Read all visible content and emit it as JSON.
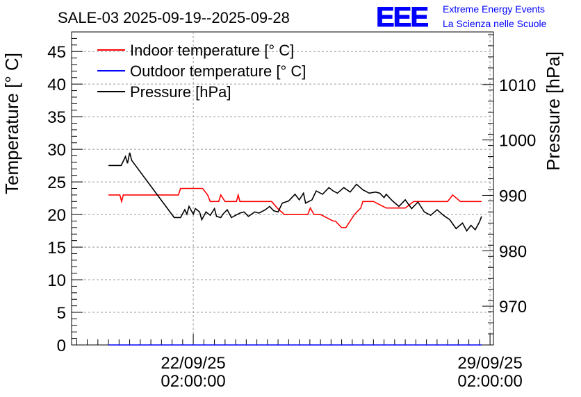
{
  "header": {
    "title": "SALE-03 2025-09-19--2025-09-28",
    "logo_text": "EEE",
    "logo_line1": "Extreme Energy Events",
    "logo_line2": "La Scienza nelle Scuole"
  },
  "colors": {
    "indoor": "#ff0000",
    "outdoor": "#0000ff",
    "pressure": "#000000",
    "logo": "#0000ff",
    "grid": "#999999"
  },
  "chart_data": {
    "type": "line",
    "title": "SALE-03 2025-09-19--2025-09-28",
    "ylabel": "Temperature [° C]",
    "y2label": "Pressure [hPa]",
    "ylim": [
      0,
      48
    ],
    "y2lim": [
      963.0,
      1019.5
    ],
    "xlim": [
      -1.87,
      8.08
    ],
    "x_unit": "days after 2025-09-21 02:00:00",
    "yticks": [
      {
        "value": 0,
        "label": "0"
      },
      {
        "value": 5,
        "label": "5"
      },
      {
        "value": 10,
        "label": "10"
      },
      {
        "value": 15,
        "label": "15"
      },
      {
        "value": 20,
        "label": "20"
      },
      {
        "value": 25,
        "label": "25"
      },
      {
        "value": 30,
        "label": "30"
      },
      {
        "value": 35,
        "label": "35"
      },
      {
        "value": 40,
        "label": "40"
      },
      {
        "value": 45,
        "label": "45"
      }
    ],
    "y2ticks": [
      {
        "value": 970,
        "label": "970"
      },
      {
        "value": 980,
        "label": "980"
      },
      {
        "value": 990,
        "label": "990"
      },
      {
        "value": 1000,
        "label": "1000"
      },
      {
        "value": 1010,
        "label": "1010"
      }
    ],
    "xticks": [
      {
        "value": 1,
        "label1": "22/09/25",
        "label2": "02:00:00"
      },
      {
        "value": 8,
        "label1": "29/09/25",
        "label2": "02:00:00"
      }
    ],
    "legend": {
      "position": "top-left",
      "entries": [
        {
          "key": "indoor",
          "label": "Indoor temperature [° C]"
        },
        {
          "key": "outdoor",
          "label": "Outdoor temperature [° C]"
        },
        {
          "key": "pressure",
          "label": "Pressure [hPa]"
        }
      ]
    },
    "series": [
      {
        "key": "indoor",
        "name": "Indoor temperature [° C]",
        "axis": "left",
        "x": [
          -1.0,
          -0.73,
          -0.69,
          -0.65,
          0.65,
          0.7,
          1.22,
          1.34,
          1.4,
          1.6,
          1.65,
          1.75,
          1.8,
          2.02,
          2.06,
          2.1,
          2.17,
          2.85,
          2.98,
          3.15,
          3.7,
          3.76,
          3.85,
          4.0,
          4.3,
          4.35,
          4.5,
          4.6,
          4.7,
          4.8,
          4.95,
          5.0,
          5.1,
          5.25,
          5.55,
          6.0,
          6.2,
          6.3,
          6.5,
          6.6,
          7.0,
          7.12,
          7.3,
          7.8
        ],
        "y": [
          23,
          23,
          22,
          23,
          23,
          24,
          24,
          23,
          22,
          22,
          23,
          22,
          22,
          22,
          23,
          22,
          22,
          22,
          21,
          20,
          20,
          21,
          20,
          20,
          19,
          19,
          18,
          18,
          19,
          20,
          21,
          22,
          22,
          22,
          21,
          21,
          22,
          22,
          22,
          22,
          22,
          23,
          22,
          22
        ]
      },
      {
        "key": "outdoor",
        "name": "Outdoor temperature [° C]",
        "axis": "left",
        "x": [
          -1.0,
          7.8
        ],
        "y": [
          0,
          0
        ]
      },
      {
        "key": "pressure",
        "name": "Pressure [hPa]",
        "axis": "right",
        "x": [
          -1.0,
          -0.7,
          -0.6,
          -0.55,
          -0.5,
          -0.45,
          0.55,
          0.7,
          0.8,
          0.85,
          0.9,
          1.0,
          1.05,
          1.15,
          1.2,
          1.3,
          1.4,
          1.5,
          1.55,
          1.65,
          1.7,
          1.8,
          1.9,
          2.0,
          2.1,
          2.2,
          2.3,
          2.45,
          2.55,
          2.7,
          2.8,
          2.9,
          3.0,
          3.1,
          3.25,
          3.4,
          3.5,
          3.6,
          3.65,
          3.8,
          3.9,
          4.05,
          4.2,
          4.3,
          4.4,
          4.55,
          4.7,
          4.85,
          5.0,
          5.15,
          5.3,
          5.4,
          5.5,
          5.55,
          5.7,
          5.85,
          6.0,
          6.15,
          6.3,
          6.45,
          6.6,
          6.75,
          6.9,
          7.05,
          7.2,
          7.35,
          7.45,
          7.55,
          7.65,
          7.75,
          7.8
        ],
        "y": [
          995.4,
          995.4,
          997.0,
          995.8,
          997.7,
          996.3,
          986.0,
          986.0,
          987.4,
          986.6,
          988.0,
          986.6,
          987.6,
          987.0,
          985.6,
          987.0,
          986.4,
          987.6,
          986.2,
          986.0,
          986.6,
          987.4,
          986.0,
          986.4,
          986.8,
          987.0,
          986.2,
          987.0,
          986.8,
          987.4,
          988.0,
          987.2,
          987.0,
          988.6,
          989.0,
          990.2,
          989.2,
          990.4,
          988.6,
          989.2,
          990.8,
          990.2,
          991.4,
          990.8,
          990.4,
          991.4,
          990.6,
          992.0,
          991.0,
          990.4,
          990.6,
          990.4,
          989.6,
          990.2,
          989.0,
          988.0,
          989.2,
          987.6,
          988.8,
          987.0,
          986.4,
          987.4,
          986.4,
          985.6,
          984.0,
          985.0,
          983.6,
          984.6,
          983.8,
          985.2,
          986.2
        ]
      }
    ]
  }
}
